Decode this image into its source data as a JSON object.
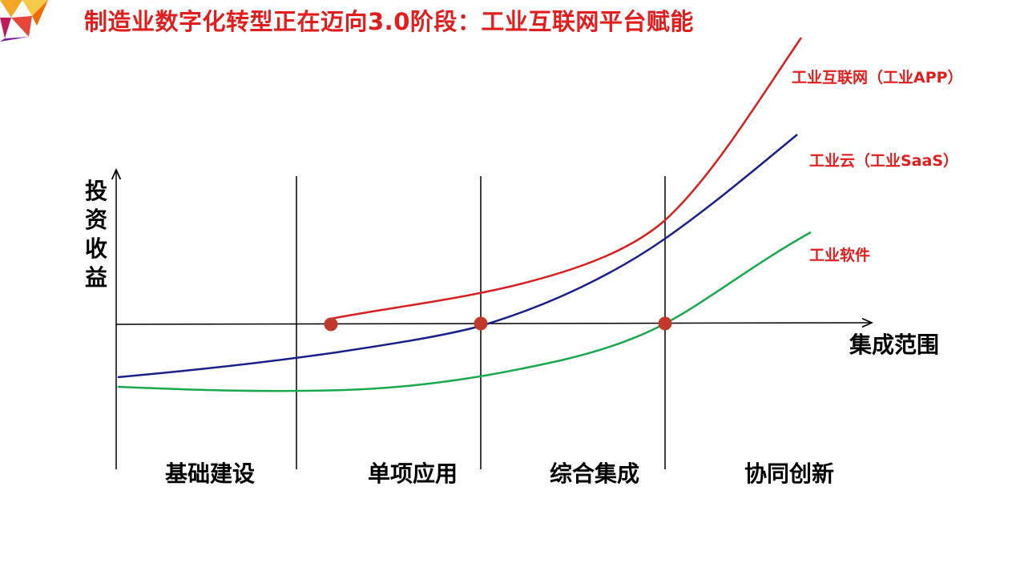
{
  "title": "制造业数字化转型正在迈向3.0阶段：工业互联网平台赋能",
  "axes": {
    "y_label": "投资收益",
    "x_label": "集成范围"
  },
  "stages": [
    "基础建设",
    "单项应用",
    "综合集成",
    "协同创新"
  ],
  "curves": [
    {
      "label": "工业互联网（工业APP）",
      "color": "#d71f1f"
    },
    {
      "label": "工业云（工业SaaS）",
      "color": "#1a1f8a"
    },
    {
      "label": "工业软件",
      "color": "#1aa84f"
    }
  ],
  "label_color": "#e11d1d",
  "marker_color": "#c0392b",
  "logo_colors": [
    "#f5a623",
    "#e8453c",
    "#c2185b",
    "#7b1fa2"
  ]
}
